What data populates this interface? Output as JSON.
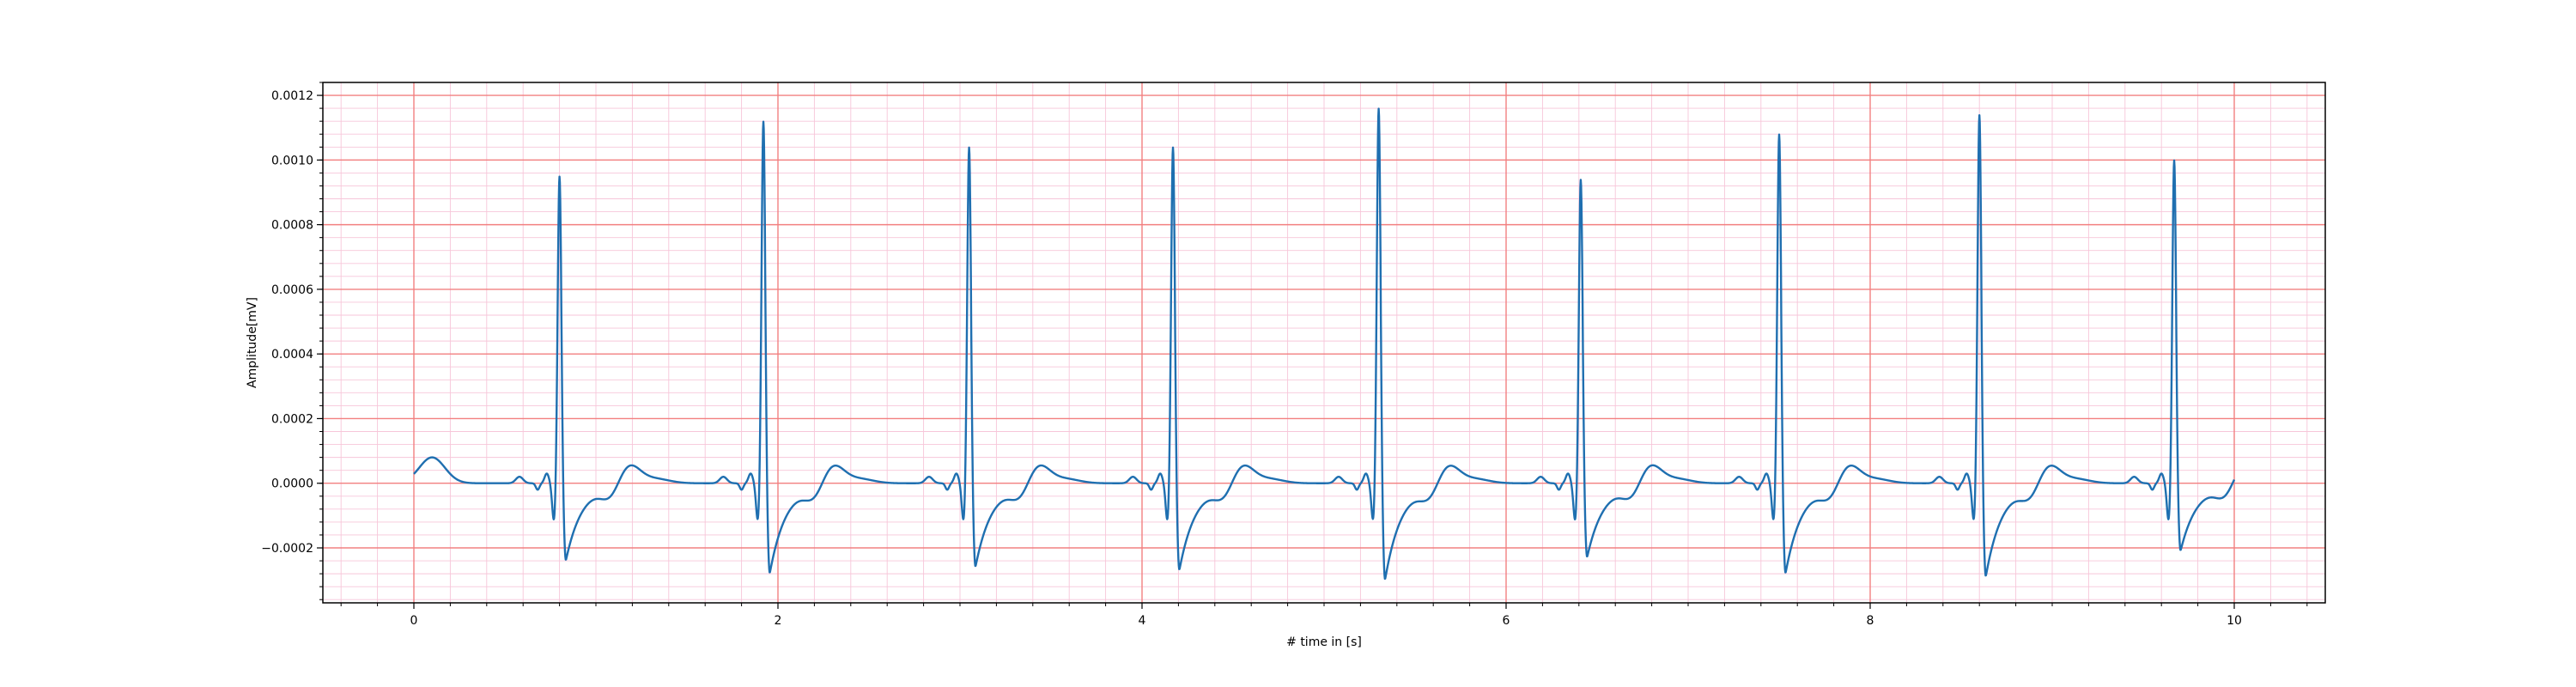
{
  "chart_data": {
    "type": "line",
    "title": "",
    "xlabel": "# time in [s]",
    "ylabel": "Amplitude[mV]",
    "xlim": [
      -0.5,
      10.5
    ],
    "ylim": [
      -0.00037,
      0.00124
    ],
    "x_ticks": [
      0,
      2,
      4,
      6,
      8,
      10
    ],
    "x_tick_labels": [
      "0",
      "2",
      "4",
      "6",
      "8",
      "10"
    ],
    "y_ticks": [
      -0.0002,
      0.0,
      0.0002,
      0.0004,
      0.0006,
      0.0008,
      0.001,
      0.0012
    ],
    "y_tick_labels": [
      "−0.0002",
      "0.0000",
      "0.0002",
      "0.0004",
      "0.0006",
      "0.0008",
      "0.0010",
      "0.0012"
    ],
    "grid": {
      "major": true,
      "minor": true,
      "major_color": "#f28080",
      "minor_color": "#f7c6d9"
    },
    "line_color": "#1f6fb0",
    "series": [
      {
        "beats": [
          {
            "r_time": 0.8,
            "r_amp": 0.00095,
            "s_amp": -0.00024
          },
          {
            "r_time": 1.92,
            "r_amp": 0.00112,
            "s_amp": -0.00028
          },
          {
            "r_time": 3.05,
            "r_amp": 0.00104,
            "s_amp": -0.00026
          },
          {
            "r_time": 4.17,
            "r_amp": 0.00104,
            "s_amp": -0.00027
          },
          {
            "r_time": 5.3,
            "r_amp": 0.00116,
            "s_amp": -0.0003
          },
          {
            "r_time": 6.41,
            "r_amp": 0.00094,
            "s_amp": -0.00023
          },
          {
            "r_time": 7.5,
            "r_amp": 0.00108,
            "s_amp": -0.00028
          },
          {
            "r_time": 8.6,
            "r_amp": 0.00114,
            "s_amp": -0.00029
          },
          {
            "r_time": 9.67,
            "r_amp": 0.001,
            "s_amp": -0.00021
          }
        ],
        "t_wave_amp": 6e-05,
        "start_amp": 8e-05,
        "x_start": 0,
        "x_end": 10
      }
    ]
  }
}
